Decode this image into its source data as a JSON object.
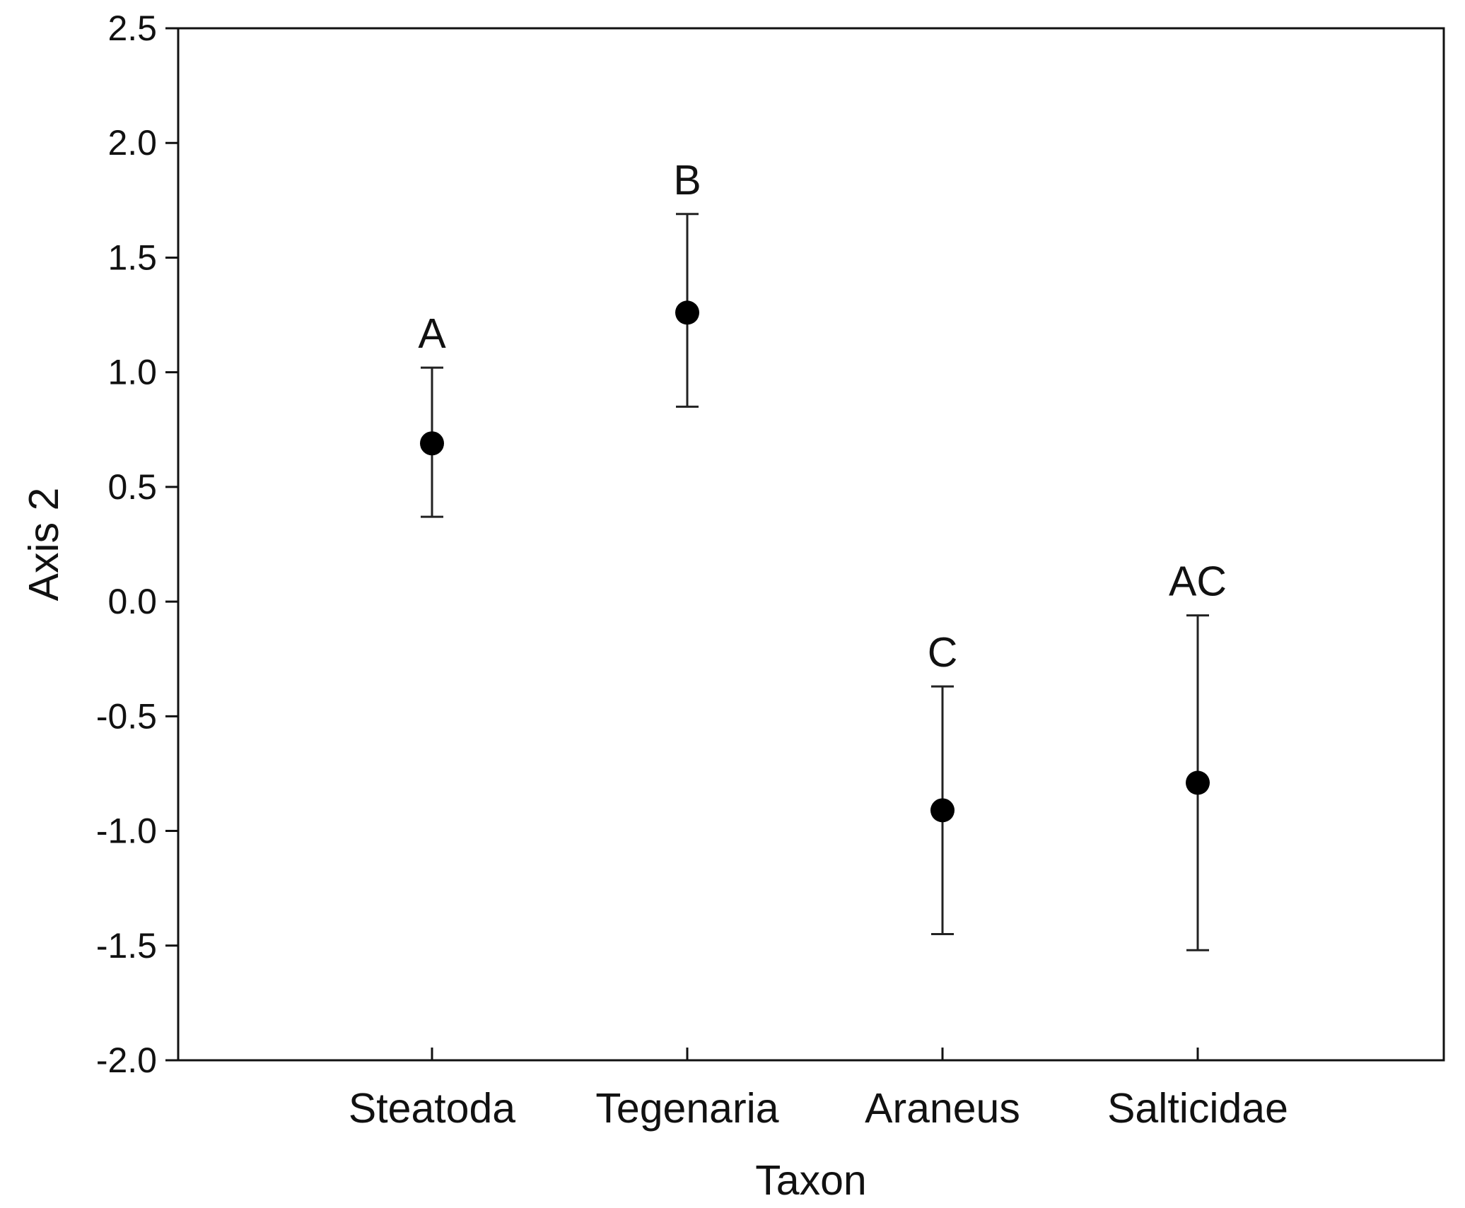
{
  "chart_data": {
    "type": "scatter",
    "subtype": "point-with-error-bars",
    "title": "",
    "xlabel": "Taxon",
    "ylabel": "Axis 2",
    "ylim": [
      -2.0,
      2.5
    ],
    "yticks": [
      2.5,
      2.0,
      1.5,
      1.0,
      0.5,
      0.0,
      -0.5,
      -1.0,
      -1.5,
      -2.0
    ],
    "ytick_labels": [
      "2.5",
      "2.0",
      "1.5",
      "1.0",
      "0.5",
      "0.0",
      "-0.5",
      "-1.0",
      "-1.5",
      "-2.0"
    ],
    "categories": [
      "Steatoda",
      "Tegenaria",
      "Araneus",
      "Salticidae"
    ],
    "values": [
      0.69,
      1.26,
      -0.91,
      -0.79
    ],
    "error_upper": [
      1.02,
      1.69,
      -0.37,
      -0.06
    ],
    "error_lower": [
      0.37,
      0.85,
      -1.45,
      -1.52
    ],
    "significance_letters": [
      "A",
      "B",
      "C",
      "AC"
    ],
    "grid": false,
    "legend": "none",
    "marker_color": "#000000",
    "line_color": "#222222"
  }
}
